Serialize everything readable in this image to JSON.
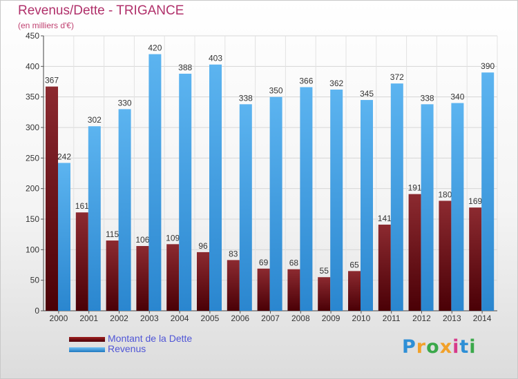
{
  "chart_data": {
    "type": "bar",
    "title": "Revenus/Dette - TRIGANCE",
    "subtitle": "(en milliers d'€)",
    "categories": [
      "2000",
      "2001",
      "2002",
      "2003",
      "2004",
      "2005",
      "2006",
      "2007",
      "2008",
      "2009",
      "2010",
      "2011",
      "2012",
      "2013",
      "2014"
    ],
    "series": [
      {
        "name": "Montant de la Dette",
        "color": "#6b0f14",
        "values": [
          367,
          161,
          115,
          106,
          109,
          96,
          83,
          69,
          68,
          55,
          65,
          141,
          191,
          180,
          169
        ]
      },
      {
        "name": "Revenus",
        "color": "#3a9ae0",
        "values": [
          242,
          302,
          330,
          420,
          388,
          403,
          338,
          350,
          366,
          362,
          345,
          372,
          338,
          340,
          390
        ]
      }
    ],
    "ylim": [
      0,
      450
    ],
    "yticks": [
      0,
      50,
      100,
      150,
      200,
      250,
      300,
      350,
      400,
      450
    ],
    "grid": true,
    "legend_position": "bottom-left",
    "xlabel": "",
    "ylabel": ""
  },
  "logo": {
    "text": "Proxiti"
  }
}
